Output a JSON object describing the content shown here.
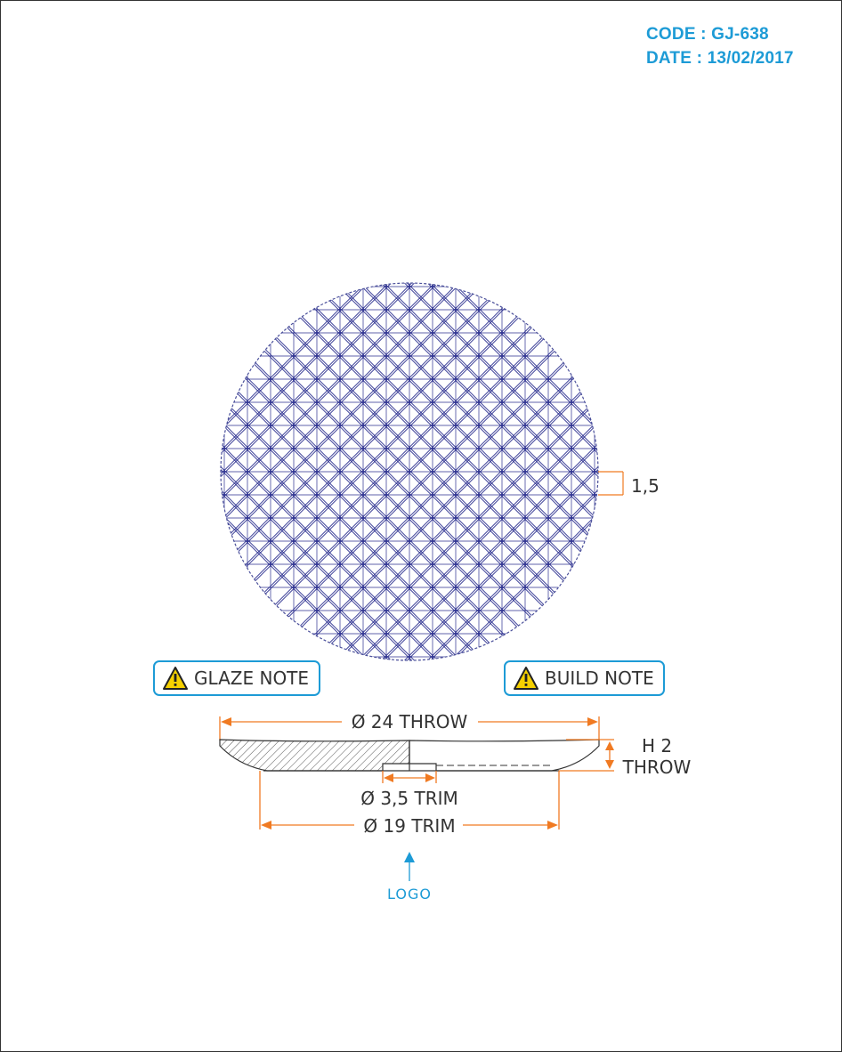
{
  "header": {
    "code": "CODE : GJ-638",
    "date": "DATE : 13/02/2017"
  },
  "notes": {
    "glaze": "GLAZE NOTE",
    "build": "BUILD NOTE",
    "icon": "warning-triangle-icon"
  },
  "dimensions": {
    "thickness": "1,5",
    "diameter": "Ø 24 THROW",
    "height_line1": "H 2",
    "height_line2": "THROW",
    "foot_diameter": "Ø 3,5 TRIM",
    "trim_diameter": "Ø 19 TRIM"
  },
  "logo_label": "LOGO",
  "colors": {
    "accent": "#1d9bd6",
    "dimension": "#f07a22",
    "pattern": "#2b2f8f",
    "line": "#333333"
  }
}
